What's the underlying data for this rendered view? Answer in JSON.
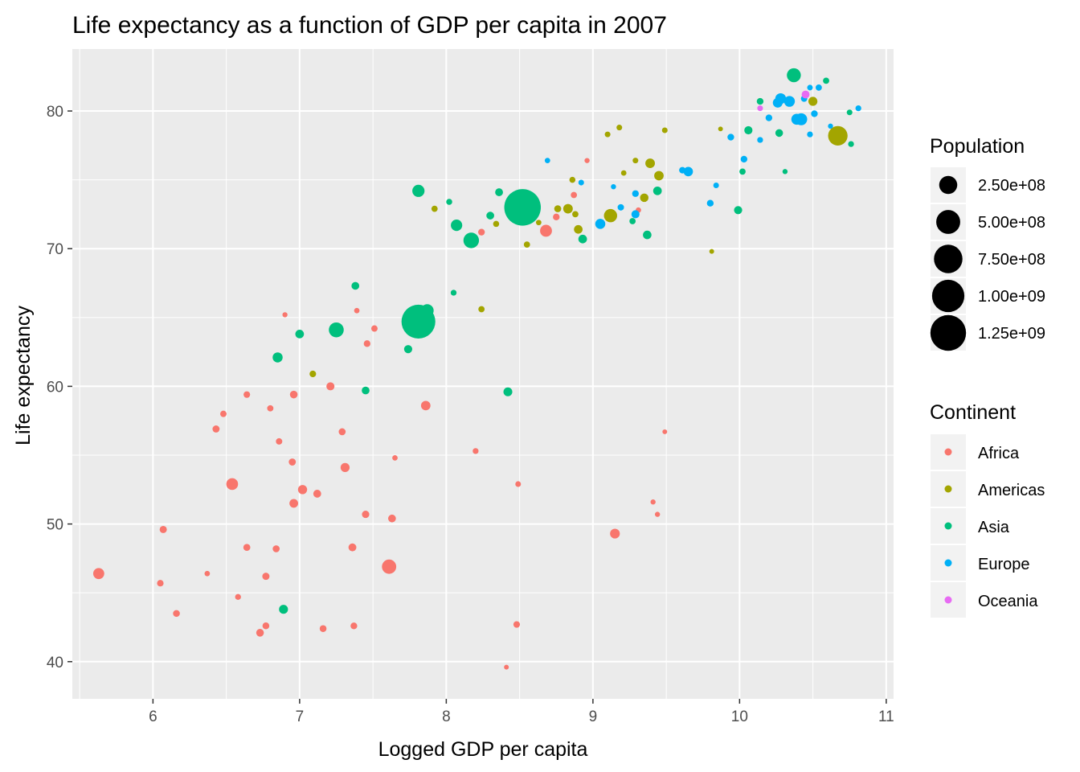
{
  "chart_data": {
    "type": "scatter",
    "title": "Life expectancy as a function of GDP per capita in 2007",
    "xlabel": "Logged GDP per capita",
    "ylabel": "Life expectancy",
    "xlim": [
      5.45,
      11.05
    ],
    "ylim": [
      37.3,
      84.5
    ],
    "x_ticks": [
      6,
      7,
      8,
      9,
      10,
      11
    ],
    "y_ticks": [
      40,
      50,
      60,
      70,
      80
    ],
    "x_tick_labels": [
      "6",
      "7",
      "8",
      "9",
      "10",
      "11"
    ],
    "y_tick_labels": [
      "40",
      "50",
      "60",
      "70",
      "80"
    ],
    "grid": true,
    "legend_position": "right",
    "size_legend": {
      "title": "Population",
      "values": [
        250000000,
        500000000,
        750000000,
        1000000000,
        1250000000
      ],
      "labels": [
        "2.50e+08",
        "5.00e+08",
        "7.50e+08",
        "1.00e+09",
        "1.25e+09"
      ]
    },
    "color_legend": {
      "title": "Continent",
      "entries": [
        {
          "name": "Africa",
          "color": "#F8766D"
        },
        {
          "name": "Americas",
          "color": "#A3A500"
        },
        {
          "name": "Asia",
          "color": "#00BF7D"
        },
        {
          "name": "Europe",
          "color": "#00B0F6"
        },
        {
          "name": "Oceania",
          "color": "#E76BF3"
        }
      ]
    },
    "series": [
      {
        "name": "Africa",
        "color": "#F8766D",
        "points": [
          [
            5.63,
            46.4,
            64
          ],
          [
            6.05,
            45.7,
            9
          ],
          [
            6.07,
            49.6,
            14
          ],
          [
            6.16,
            43.5,
            11
          ],
          [
            6.37,
            46.4,
            3
          ],
          [
            6.43,
            56.9,
            13
          ],
          [
            6.48,
            58.0,
            8
          ],
          [
            6.54,
            52.9,
            77
          ],
          [
            6.58,
            44.7,
            5
          ],
          [
            6.64,
            48.3,
            12
          ],
          [
            6.64,
            59.4,
            9
          ],
          [
            6.73,
            42.1,
            18
          ],
          [
            6.77,
            46.2,
            14
          ],
          [
            6.77,
            42.6,
            11
          ],
          [
            6.8,
            58.4,
            7
          ],
          [
            6.84,
            48.2,
            12
          ],
          [
            6.86,
            56.0,
            8
          ],
          [
            6.9,
            65.2,
            2
          ],
          [
            6.95,
            54.5,
            13
          ],
          [
            6.96,
            59.4,
            18
          ],
          [
            6.96,
            51.5,
            29
          ],
          [
            7.02,
            52.5,
            35
          ],
          [
            7.12,
            52.2,
            20
          ],
          [
            7.16,
            42.4,
            11
          ],
          [
            7.21,
            60.0,
            22
          ],
          [
            7.29,
            56.7,
            12
          ],
          [
            7.31,
            54.1,
            33
          ],
          [
            7.36,
            48.3,
            20
          ],
          [
            7.37,
            42.6,
            10
          ],
          [
            7.39,
            65.5,
            3
          ],
          [
            7.45,
            50.7,
            15
          ],
          [
            7.46,
            63.1,
            10
          ],
          [
            7.51,
            64.2,
            8
          ],
          [
            7.61,
            46.9,
            135
          ],
          [
            7.63,
            50.4,
            19
          ],
          [
            7.65,
            54.8,
            3
          ],
          [
            7.86,
            58.6,
            39
          ],
          [
            8.2,
            55.3,
            5
          ],
          [
            8.24,
            71.2,
            10
          ],
          [
            8.41,
            39.6,
            1
          ],
          [
            8.48,
            42.7,
            9
          ],
          [
            8.49,
            52.9,
            4
          ],
          [
            8.68,
            71.3,
            80
          ],
          [
            8.75,
            72.3,
            10
          ],
          [
            8.87,
            73.9,
            7
          ],
          [
            8.96,
            76.4,
            2
          ],
          [
            9.15,
            49.3,
            43
          ],
          [
            9.31,
            72.8,
            3
          ],
          [
            9.41,
            51.6,
            2
          ],
          [
            9.44,
            50.7,
            2
          ],
          [
            9.49,
            56.7,
            1
          ]
        ]
      },
      {
        "name": "Americas",
        "color": "#A3A500",
        "points": [
          [
            7.09,
            60.9,
            9
          ],
          [
            8.24,
            65.6,
            7
          ],
          [
            8.18,
            70.3,
            7
          ],
          [
            8.34,
            71.8,
            6
          ],
          [
            8.55,
            70.3,
            7
          ],
          [
            8.63,
            71.9,
            3
          ],
          [
            8.76,
            72.9,
            12
          ],
          [
            8.83,
            72.9,
            40
          ],
          [
            8.86,
            75.0,
            6
          ],
          [
            8.88,
            72.5,
            7
          ],
          [
            8.9,
            71.4,
            28
          ],
          [
            7.92,
            72.9,
            7
          ],
          [
            9.12,
            72.4,
            108
          ],
          [
            9.1,
            78.3,
            4
          ],
          [
            9.18,
            78.8,
            4
          ],
          [
            9.21,
            75.5,
            3
          ],
          [
            9.29,
            76.4,
            4
          ],
          [
            9.35,
            73.7,
            26
          ],
          [
            9.39,
            76.2,
            40
          ],
          [
            9.45,
            75.3,
            39
          ],
          [
            9.49,
            78.6,
            4
          ],
          [
            9.81,
            69.8,
            1
          ],
          [
            9.87,
            78.7,
            1
          ],
          [
            10.5,
            80.7,
            33
          ],
          [
            10.67,
            78.2,
            301
          ]
        ]
      },
      {
        "name": "Asia",
        "color": "#00BF7D",
        "points": [
          [
            6.89,
            43.8,
            32
          ],
          [
            6.85,
            62.1,
            47
          ],
          [
            7.0,
            63.8,
            28
          ],
          [
            7.25,
            64.1,
            150
          ],
          [
            7.38,
            67.3,
            19
          ],
          [
            7.45,
            59.7,
            19
          ],
          [
            7.74,
            62.7,
            23
          ],
          [
            7.81,
            64.7,
            1110
          ],
          [
            7.87,
            65.5,
            100
          ],
          [
            7.81,
            74.2,
            86
          ],
          [
            8.02,
            73.4,
            6
          ],
          [
            8.05,
            66.8,
            5
          ],
          [
            8.07,
            71.7,
            70
          ],
          [
            8.17,
            70.6,
            169
          ],
          [
            8.3,
            72.4,
            19
          ],
          [
            8.36,
            74.1,
            20
          ],
          [
            8.42,
            59.6,
            31
          ],
          [
            8.47,
            72.6,
            11
          ],
          [
            8.52,
            73.0,
            1319
          ],
          [
            8.93,
            70.7,
            28
          ],
          [
            9.27,
            72.0,
            7
          ],
          [
            9.37,
            71.0,
            27
          ],
          [
            9.44,
            74.2,
            28
          ],
          [
            9.99,
            72.8,
            23
          ],
          [
            10.02,
            75.6,
            7
          ],
          [
            10.06,
            78.6,
            23
          ],
          [
            10.14,
            80.7,
            10
          ],
          [
            10.27,
            78.4,
            18
          ],
          [
            10.31,
            75.6,
            2
          ],
          [
            10.37,
            82.6,
            127
          ],
          [
            10.59,
            82.2,
            7
          ],
          [
            10.75,
            79.9,
            4
          ],
          [
            10.76,
            77.6,
            5
          ]
        ]
      },
      {
        "name": "Europe",
        "color": "#00B0F6",
        "points": [
          [
            8.69,
            76.4,
            3
          ],
          [
            8.92,
            74.8,
            4
          ],
          [
            9.05,
            71.8,
            48
          ],
          [
            9.14,
            74.5,
            2
          ],
          [
            9.19,
            73.0,
            8
          ],
          [
            9.29,
            74.0,
            10
          ],
          [
            9.29,
            72.5,
            22
          ],
          [
            9.61,
            75.7,
            9
          ],
          [
            9.65,
            75.6,
            38
          ],
          [
            9.8,
            73.3,
            10
          ],
          [
            9.84,
            74.6,
            4
          ],
          [
            9.94,
            78.1,
            10
          ],
          [
            10.03,
            76.5,
            10
          ],
          [
            10.14,
            77.9,
            5
          ],
          [
            10.2,
            79.5,
            10
          ],
          [
            10.26,
            80.6,
            43
          ],
          [
            10.28,
            80.9,
            58
          ],
          [
            10.34,
            80.7,
            60
          ],
          [
            10.39,
            79.4,
            62
          ],
          [
            10.42,
            79.4,
            82
          ],
          [
            10.44,
            80.9,
            8
          ],
          [
            10.48,
            78.3,
            5
          ],
          [
            10.48,
            81.7,
            4
          ],
          [
            10.51,
            79.8,
            10
          ],
          [
            10.54,
            81.7,
            7
          ],
          [
            10.62,
            78.9,
            2
          ],
          [
            10.81,
            80.2,
            5
          ]
        ]
      },
      {
        "name": "Oceania",
        "color": "#E76BF3",
        "points": [
          [
            10.14,
            80.2,
            4
          ],
          [
            10.45,
            81.2,
            20
          ]
        ]
      }
    ]
  }
}
